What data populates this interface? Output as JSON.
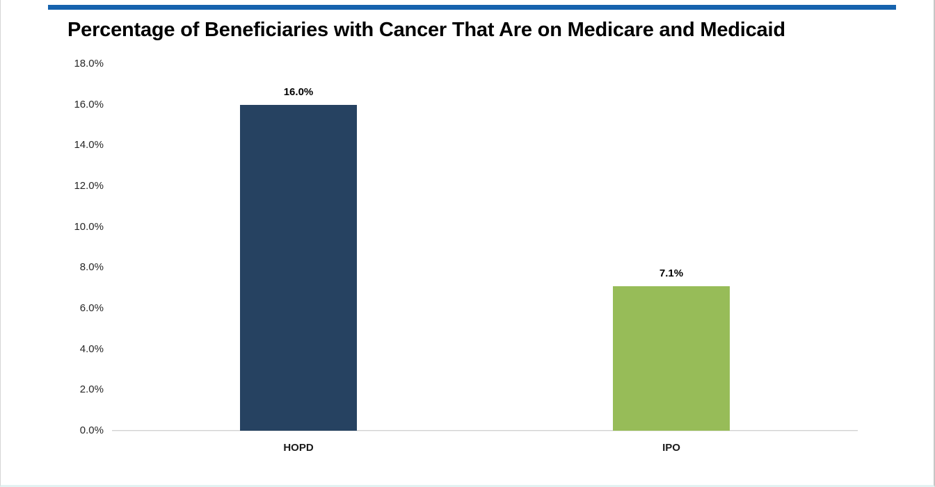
{
  "header": {
    "accent_color": "#1663AE"
  },
  "chart_data": {
    "type": "bar",
    "title": "Percentage of Beneficiaries with Cancer That Are on Medicare and Medicaid",
    "categories": [
      "HOPD",
      "IPO"
    ],
    "values": [
      16.0,
      7.1
    ],
    "value_labels": [
      "16.0%",
      "7.1%"
    ],
    "bar_colors": [
      "#264261",
      "#97BC58"
    ],
    "xlabel": "",
    "ylabel": "",
    "ylim": [
      0,
      18
    ],
    "ytick_labels": [
      "0.0%",
      "2.0%",
      "4.0%",
      "6.0%",
      "8.0%",
      "10.0%",
      "12.0%",
      "14.0%",
      "16.0%",
      "18.0%"
    ],
    "grid": false,
    "legend": false,
    "axis_line_color": "#d2d2d2",
    "title_color": "#000000"
  }
}
